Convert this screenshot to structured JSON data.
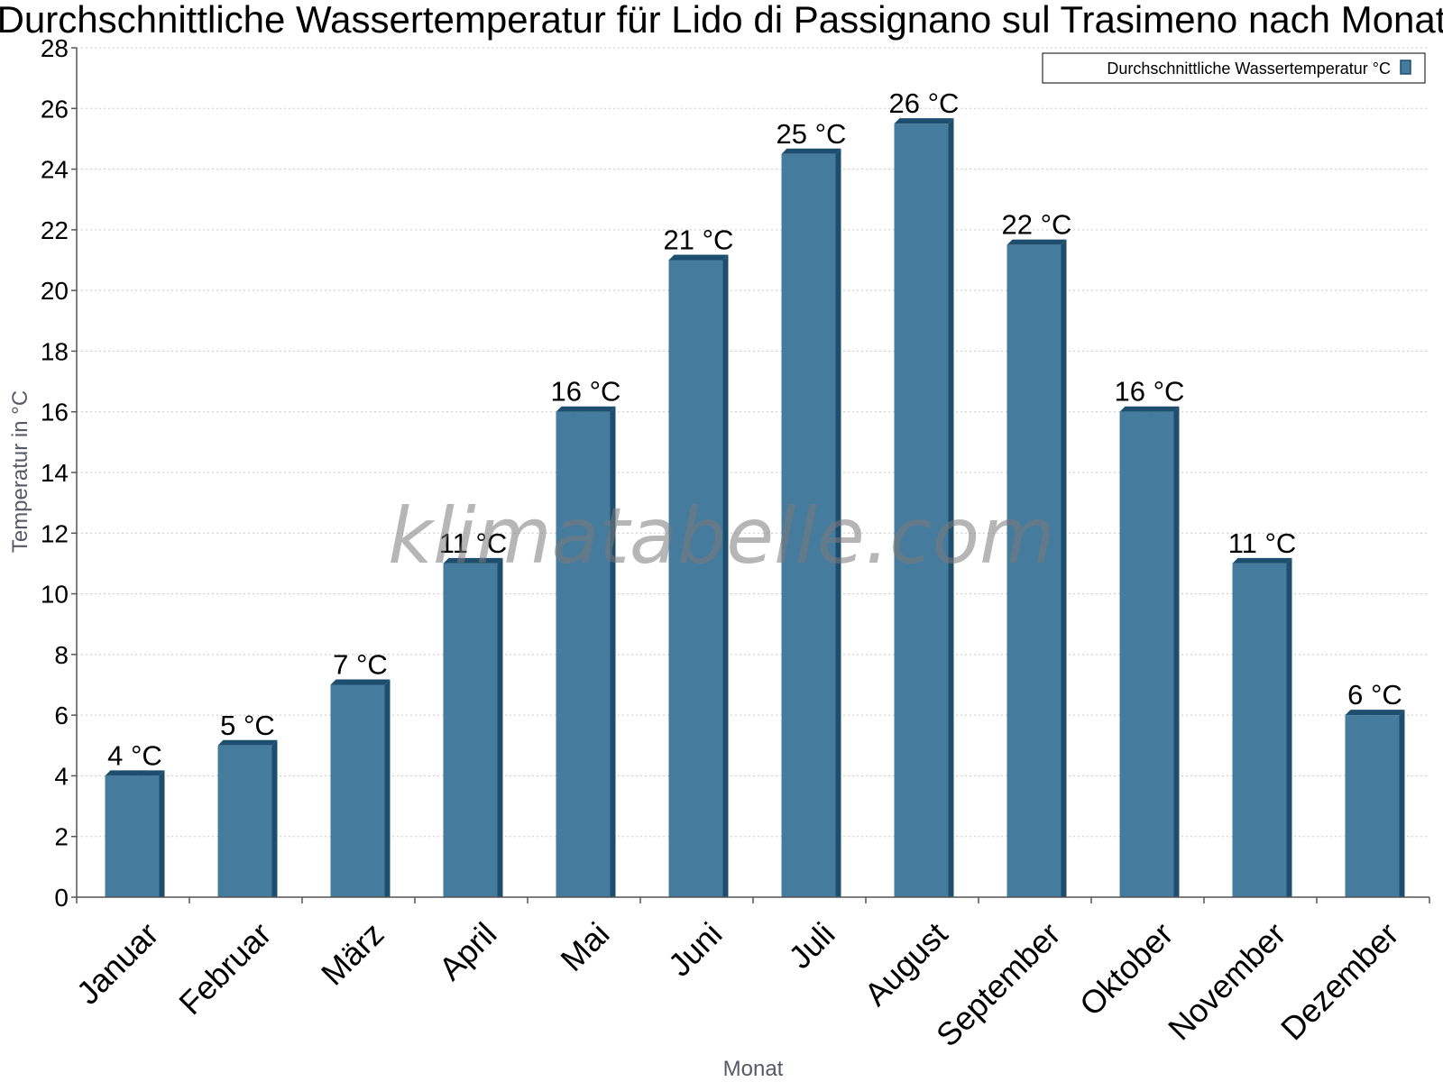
{
  "chart_data": {
    "type": "bar",
    "title": "Durchschnittliche Wassertemperatur für Lido di Passignano sul Trasimeno nach Monat",
    "xlabel": "Monat",
    "ylabel": "Temperatur in °C",
    "categories": [
      "Januar",
      "Februar",
      "März",
      "April",
      "Mai",
      "Juni",
      "Juli",
      "August",
      "September",
      "Oktober",
      "November",
      "Dezember"
    ],
    "series": [
      {
        "name": "Durchschnittliche Wassertemperatur °C",
        "values": [
          4,
          5,
          7,
          11,
          16,
          21,
          24.5,
          25.5,
          21.5,
          16,
          11,
          6
        ],
        "labels": [
          "4 °C",
          "5 °C",
          "7 °C",
          "11 °C",
          "16 °C",
          "21 °C",
          "25 °C",
          "26 °C",
          "22 °C",
          "16 °C",
          "11 °C",
          "6 °C"
        ],
        "color": "#457b9d"
      }
    ],
    "yticks": [
      0,
      2,
      4,
      6,
      8,
      10,
      12,
      14,
      16,
      18,
      20,
      22,
      24,
      26,
      28
    ],
    "ylim": [
      0,
      28
    ],
    "grid": true,
    "legend_position": "top-right"
  },
  "watermark": "klimatabelle.com",
  "colors": {
    "bar_front": "#457b9d",
    "bar_side": "#1d4e6e",
    "bar_top": "#1d4e6e",
    "grid": "#c8c8c8",
    "axis": "#555555"
  }
}
